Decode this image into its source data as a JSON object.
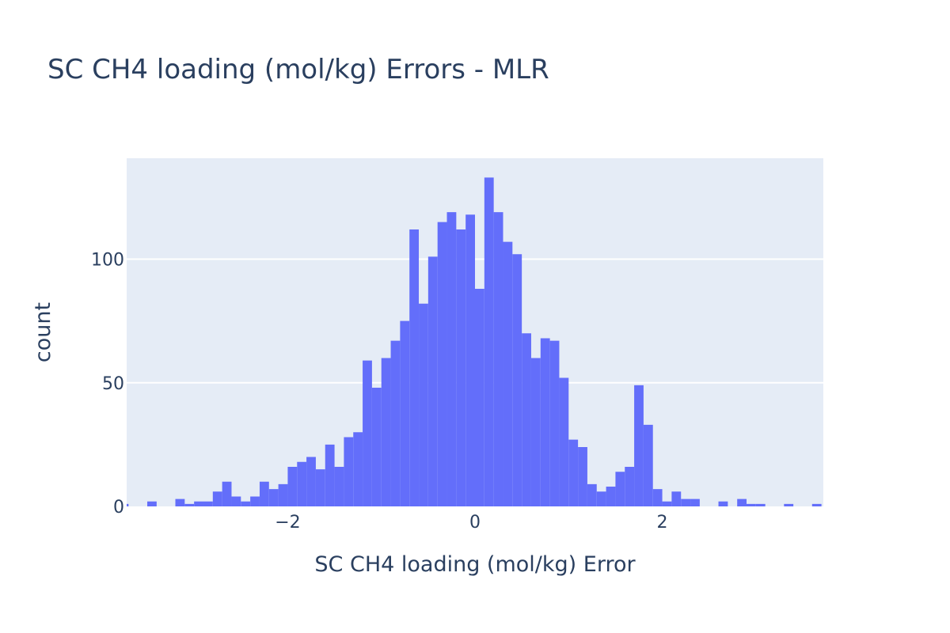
{
  "chart_data": {
    "type": "bar",
    "title": "SC CH4 loading (mol/kg) Errors - MLR",
    "xlabel": "SC CH4 loading (mol/kg) Error",
    "ylabel": "count",
    "xlim": [
      -3.72,
      3.72
    ],
    "ylim": [
      0,
      140.8
    ],
    "x_ticks": [
      -2,
      0,
      2
    ],
    "x_tick_labels": [
      "−2",
      "0",
      "2"
    ],
    "y_ticks": [
      0,
      50,
      100
    ],
    "y_tick_labels": [
      "0",
      "50",
      "100"
    ],
    "grid": true,
    "bar_color": "#636efa",
    "bins": [
      {
        "x0": -3.8,
        "x1": -3.7,
        "count": 1
      },
      {
        "x0": -3.5,
        "x1": -3.4,
        "count": 2
      },
      {
        "x0": -3.2,
        "x1": -3.1,
        "count": 3
      },
      {
        "x0": -3.1,
        "x1": -3.0,
        "count": 1
      },
      {
        "x0": -3.0,
        "x1": -2.9,
        "count": 2
      },
      {
        "x0": -2.9,
        "x1": -2.8,
        "count": 2
      },
      {
        "x0": -2.8,
        "x1": -2.7,
        "count": 6
      },
      {
        "x0": -2.7,
        "x1": -2.6,
        "count": 10
      },
      {
        "x0": -2.6,
        "x1": -2.5,
        "count": 4
      },
      {
        "x0": -2.5,
        "x1": -2.4,
        "count": 2
      },
      {
        "x0": -2.4,
        "x1": -2.3,
        "count": 4
      },
      {
        "x0": -2.3,
        "x1": -2.2,
        "count": 10
      },
      {
        "x0": -2.2,
        "x1": -2.1,
        "count": 7
      },
      {
        "x0": -2.1,
        "x1": -2.0,
        "count": 9
      },
      {
        "x0": -2.0,
        "x1": -1.9,
        "count": 16
      },
      {
        "x0": -1.9,
        "x1": -1.8,
        "count": 18
      },
      {
        "x0": -1.8,
        "x1": -1.7,
        "count": 20
      },
      {
        "x0": -1.7,
        "x1": -1.6,
        "count": 15
      },
      {
        "x0": -1.6,
        "x1": -1.5,
        "count": 25
      },
      {
        "x0": -1.5,
        "x1": -1.4,
        "count": 16
      },
      {
        "x0": -1.4,
        "x1": -1.3,
        "count": 28
      },
      {
        "x0": -1.3,
        "x1": -1.2,
        "count": 30
      },
      {
        "x0": -1.2,
        "x1": -1.1,
        "count": 59
      },
      {
        "x0": -1.1,
        "x1": -1.0,
        "count": 48
      },
      {
        "x0": -1.0,
        "x1": -0.9,
        "count": 60
      },
      {
        "x0": -0.9,
        "x1": -0.8,
        "count": 67
      },
      {
        "x0": -0.8,
        "x1": -0.7,
        "count": 75
      },
      {
        "x0": -0.7,
        "x1": -0.6,
        "count": 112
      },
      {
        "x0": -0.6,
        "x1": -0.5,
        "count": 82
      },
      {
        "x0": -0.5,
        "x1": -0.4,
        "count": 101
      },
      {
        "x0": -0.4,
        "x1": -0.3,
        "count": 115
      },
      {
        "x0": -0.3,
        "x1": -0.2,
        "count": 119
      },
      {
        "x0": -0.2,
        "x1": -0.1,
        "count": 112
      },
      {
        "x0": -0.1,
        "x1": 0.0,
        "count": 118
      },
      {
        "x0": 0.0,
        "x1": 0.1,
        "count": 88
      },
      {
        "x0": 0.1,
        "x1": 0.2,
        "count": 133
      },
      {
        "x0": 0.2,
        "x1": 0.3,
        "count": 119
      },
      {
        "x0": 0.3,
        "x1": 0.4,
        "count": 107
      },
      {
        "x0": 0.4,
        "x1": 0.5,
        "count": 102
      },
      {
        "x0": 0.5,
        "x1": 0.6,
        "count": 70
      },
      {
        "x0": 0.6,
        "x1": 0.7,
        "count": 60
      },
      {
        "x0": 0.7,
        "x1": 0.8,
        "count": 68
      },
      {
        "x0": 0.8,
        "x1": 0.9,
        "count": 67
      },
      {
        "x0": 0.9,
        "x1": 1.0,
        "count": 52
      },
      {
        "x0": 1.0,
        "x1": 1.1,
        "count": 27
      },
      {
        "x0": 1.1,
        "x1": 1.2,
        "count": 24
      },
      {
        "x0": 1.2,
        "x1": 1.3,
        "count": 9
      },
      {
        "x0": 1.3,
        "x1": 1.4,
        "count": 6
      },
      {
        "x0": 1.4,
        "x1": 1.5,
        "count": 8
      },
      {
        "x0": 1.5,
        "x1": 1.6,
        "count": 14
      },
      {
        "x0": 1.6,
        "x1": 1.7,
        "count": 16
      },
      {
        "x0": 1.7,
        "x1": 1.8,
        "count": 49
      },
      {
        "x0": 1.8,
        "x1": 1.9,
        "count": 33
      },
      {
        "x0": 1.9,
        "x1": 2.0,
        "count": 7
      },
      {
        "x0": 2.0,
        "x1": 2.1,
        "count": 2
      },
      {
        "x0": 2.1,
        "x1": 2.2,
        "count": 6
      },
      {
        "x0": 2.2,
        "x1": 2.3,
        "count": 3
      },
      {
        "x0": 2.3,
        "x1": 2.4,
        "count": 3
      },
      {
        "x0": 2.6,
        "x1": 2.7,
        "count": 2
      },
      {
        "x0": 2.8,
        "x1": 2.9,
        "count": 3
      },
      {
        "x0": 2.9,
        "x1": 3.0,
        "count": 1
      },
      {
        "x0": 3.0,
        "x1": 3.1,
        "count": 1
      },
      {
        "x0": 3.3,
        "x1": 3.4,
        "count": 1
      },
      {
        "x0": 3.6,
        "x1": 3.7,
        "count": 1
      }
    ]
  }
}
